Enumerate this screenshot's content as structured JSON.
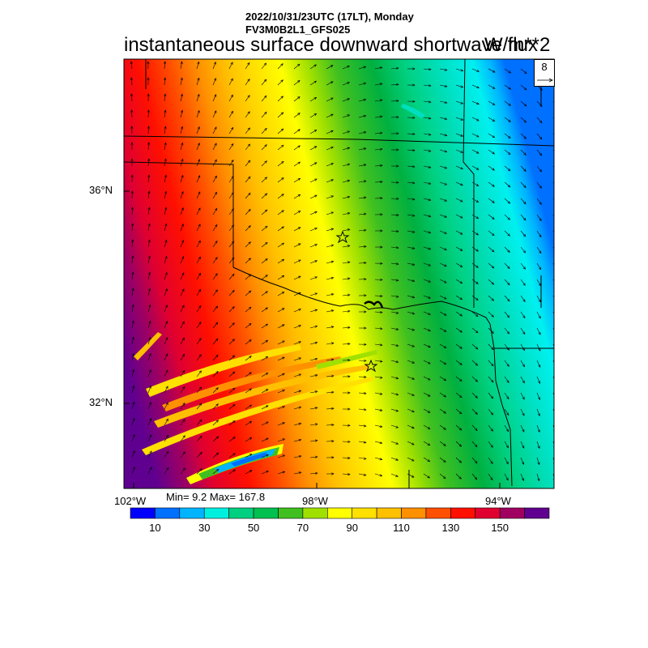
{
  "header": {
    "datetime": "2022/10/31/23UTC (17LT), Monday",
    "model": "FV3M0B2L1_GFS025",
    "title": "instantaneous surface downward shortwave flux",
    "units": "W/m**2"
  },
  "map": {
    "lat_labels": [
      "36°N",
      "32°N"
    ],
    "lon_labels": [
      "102°W",
      "98°W",
      "94°W"
    ],
    "reference_vector": "8",
    "stats": "Min= 9.2 Max= 167.8",
    "markers": [
      "star",
      "star"
    ]
  },
  "colorbar": {
    "colors": [
      "#0000ff",
      "#0070ff",
      "#00b4ff",
      "#00f0e0",
      "#00d080",
      "#00c050",
      "#40c020",
      "#a0e000",
      "#ffff00",
      "#ffe000",
      "#ffc000",
      "#ff9000",
      "#ff5000",
      "#ff1000",
      "#e00030",
      "#a00060",
      "#600090"
    ],
    "labels": [
      "10",
      "30",
      "50",
      "70",
      "90",
      "110",
      "130",
      "150"
    ]
  }
}
